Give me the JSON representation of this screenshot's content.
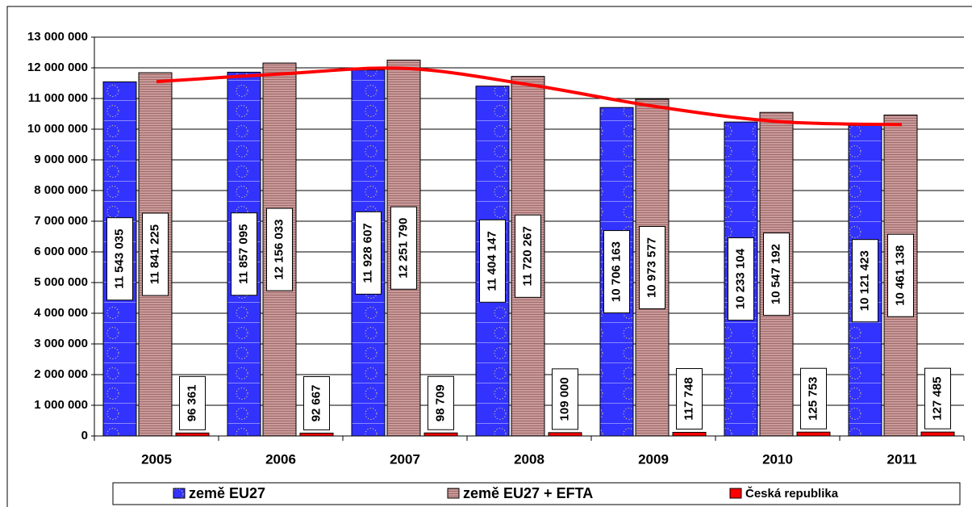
{
  "chart_data": {
    "type": "bar",
    "categories": [
      "2005",
      "2006",
      "2007",
      "2008",
      "2009",
      "2010",
      "2011"
    ],
    "series": [
      {
        "name": "země EU27",
        "color": "#3333ff",
        "values": [
          11543035,
          11857095,
          11928607,
          11404147,
          10706163,
          10233104,
          10121423
        ],
        "value_labels": [
          "11 543 035",
          "11 857 095",
          "11 928 607",
          "11 404 147",
          "10 706 163",
          "10 233 104",
          "10 121 423"
        ]
      },
      {
        "name": "země EU27 + EFTA",
        "color": "#c99a9a",
        "values": [
          11841225,
          12156033,
          12251790,
          11720267,
          10973577,
          10547192,
          10461138
        ],
        "value_labels": [
          "11 841 225",
          "12 156 033",
          "12 251 790",
          "11 720 267",
          "10 973 577",
          "10 547 192",
          "10 461 138"
        ]
      },
      {
        "name": "Česká republika",
        "color": "#ff0000",
        "values": [
          96361,
          92667,
          98709,
          109000,
          117748,
          125753,
          127485
        ],
        "value_labels": [
          "96 361",
          "92 667",
          "98 709",
          "109 000",
          "117 748",
          "125 753",
          "127 485"
        ]
      }
    ],
    "trend": {
      "color": "#ff0000",
      "values": [
        11550000,
        11800000,
        11980000,
        11450000,
        10750000,
        10250000,
        10150000
      ]
    },
    "ylim": [
      0,
      13000000
    ],
    "yticks": [
      0,
      {
        "value": 1000000,
        "label": "1 000 000"
      },
      {
        "value": 2000000,
        "label": "2 000 000"
      },
      {
        "value": 3000000,
        "label": "3 000 000"
      },
      {
        "value": 4000000,
        "label": "4 000 000"
      },
      {
        "value": 5000000,
        "label": "5 000 000"
      },
      {
        "value": 6000000,
        "label": "6 000 000"
      },
      {
        "value": 7000000,
        "label": "7 000 000"
      },
      {
        "value": 8000000,
        "label": "8 000 000"
      },
      {
        "value": 9000000,
        "label": "9 000 000"
      },
      {
        "value": 10000000,
        "label": "10 000 000"
      },
      {
        "value": 11000000,
        "label": "11 000 000"
      },
      {
        "value": 12000000,
        "label": "12 000 000"
      },
      {
        "value": 13000000,
        "label": "13 000 000"
      }
    ],
    "grid": true,
    "legend": "bottom"
  }
}
